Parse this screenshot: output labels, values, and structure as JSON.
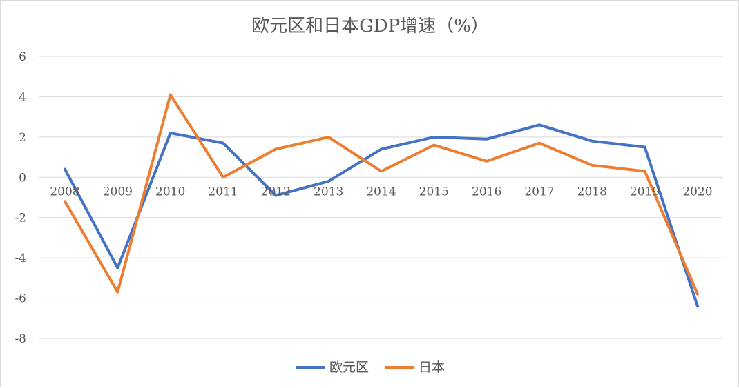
{
  "chart_data": {
    "type": "line",
    "title": "欧元区和日本GDP增速（%）",
    "xlabel": "",
    "ylabel": "",
    "categories": [
      "2008",
      "2009",
      "2010",
      "2011",
      "2012",
      "2013",
      "2014",
      "2015",
      "2016",
      "2017",
      "2018",
      "2019",
      "2020"
    ],
    "y_ticks": [
      "6",
      "4",
      "2",
      "0",
      "-2",
      "-4",
      "-6",
      "-8"
    ],
    "ylim": [
      -8,
      6
    ],
    "grid": true,
    "legend_position": "bottom",
    "series": [
      {
        "name": "欧元区",
        "color": "#4472C4",
        "values": [
          0.4,
          -4.5,
          2.2,
          1.7,
          -0.9,
          -0.2,
          1.4,
          2.0,
          1.9,
          2.6,
          1.8,
          1.5,
          -6.4
        ]
      },
      {
        "name": "日本",
        "color": "#ED7D31",
        "values": [
          -1.2,
          -5.7,
          4.1,
          0.0,
          1.4,
          2.0,
          0.3,
          1.6,
          0.8,
          1.7,
          0.6,
          0.3,
          -5.8
        ]
      }
    ]
  }
}
